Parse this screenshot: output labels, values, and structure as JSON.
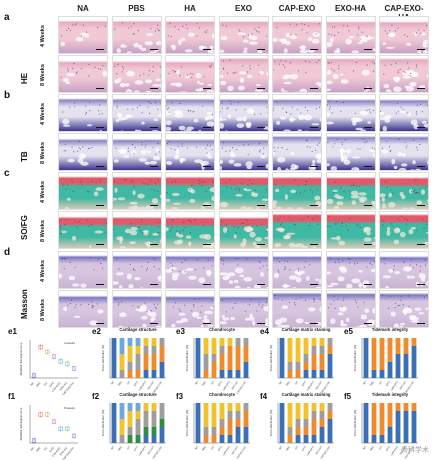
{
  "figure": {
    "columns": [
      "NA",
      "PBS",
      "HA",
      "EXO",
      "CAP-EXO",
      "EXO-HA",
      "CAP-EXO-HA"
    ],
    "panels": [
      {
        "letter": "a",
        "stain": "HE",
        "weeks": [
          "4 Weeks",
          "8 Weeks"
        ]
      },
      {
        "letter": "b",
        "stain": "TB",
        "weeks": [
          "4 Weeks",
          "8 Weeks"
        ]
      },
      {
        "letter": "c",
        "stain": "SO/FG",
        "weeks": [
          "4 Weeks",
          "8 Weeks"
        ]
      },
      {
        "letter": "d",
        "stain": "Masson",
        "weeks": [
          "4 Weeks",
          "8 Weeks"
        ]
      }
    ],
    "stain_colors": {
      "HE": [
        "#f1c9d6",
        "#e7a9c0",
        "#c9a1c4"
      ],
      "TB": [
        "#e4e2ef",
        "#8c86c6",
        "#3c358f"
      ],
      "SO/FG": [
        "#3fb8a4",
        "#e05a6a",
        "#d9c9b6"
      ],
      "Masson": [
        "#d7c5e0",
        "#7d79c3",
        "#c9b3d3"
      ]
    },
    "e_row_labels": [
      "e1",
      "e2",
      "e3",
      "e4",
      "e5"
    ],
    "f_row_labels": [
      "f1",
      "f2",
      "f3",
      "f4",
      "f5"
    ],
    "e1_legend": "4 weeks",
    "f1_legend": "8 weeks",
    "e1_ylabel": "Modified histological score",
    "f1_ylabel": "Modified histological score",
    "watermark": "骨科学术"
  },
  "chart_data": [
    {
      "type": "scatter",
      "id": "e1",
      "legend": "4 weeks",
      "ylabel": "Modified histological score",
      "categories": [
        "NA",
        "PBS",
        "HA",
        "EXO",
        "CAP-EXO",
        "EXO-HA",
        "CAP-EXO-HA"
      ],
      "values": [
        1,
        13,
        11,
        9,
        7,
        6,
        4
      ],
      "colors": [
        "#5b5bd6",
        "#e06060",
        "#e0a040",
        "#d070c0",
        "#60a0e0",
        "#60c080",
        "#8080e0"
      ]
    },
    {
      "type": "bar",
      "id": "e2",
      "title": "Cartilage structure",
      "ylabel": "Score distribution (%)",
      "categories": [
        "NA",
        "PBS",
        "HA",
        "EXO",
        "CAP-EXO",
        "EXO-HA",
        "CAP-EXO-HA"
      ],
      "series": [
        {
          "color": "#3b6fb6",
          "values": [
            100,
            0,
            0,
            0,
            20,
            20,
            40
          ]
        },
        {
          "color": "#f08a2c",
          "values": [
            0,
            0,
            20,
            20,
            40,
            40,
            40
          ]
        },
        {
          "color": "#9e9e9e",
          "values": [
            0,
            20,
            20,
            40,
            20,
            20,
            20
          ]
        },
        {
          "color": "#f2c12e",
          "values": [
            0,
            40,
            40,
            20,
            20,
            20,
            0
          ]
        },
        {
          "color": "#6fa8dc",
          "values": [
            0,
            40,
            20,
            20,
            0,
            0,
            0
          ]
        }
      ]
    },
    {
      "type": "bar",
      "id": "e3",
      "title": "Chondrocyte",
      "ylabel": "Score distribution (%)",
      "categories": [
        "NA",
        "PBS",
        "HA",
        "EXO",
        "CAP-EXO",
        "EXO-HA",
        "CAP-EXO-HA"
      ],
      "series": [
        {
          "color": "#3b6fb6",
          "values": [
            100,
            0,
            0,
            20,
            20,
            20,
            40
          ]
        },
        {
          "color": "#f08a2c",
          "values": [
            0,
            20,
            40,
            40,
            60,
            60,
            40
          ]
        },
        {
          "color": "#9e9e9e",
          "values": [
            0,
            40,
            20,
            20,
            0,
            20,
            20
          ]
        },
        {
          "color": "#f2c12e",
          "values": [
            0,
            40,
            40,
            20,
            20,
            0,
            0
          ]
        }
      ]
    },
    {
      "type": "bar",
      "id": "e4",
      "title": "Cartilage matrix staining",
      "ylabel": "Score distribution (%)",
      "categories": [
        "NA",
        "PBS",
        "HA",
        "EXO",
        "CAP-EXO",
        "EXO-HA",
        "CAP-EXO-HA"
      ],
      "series": [
        {
          "color": "#3b6fb6",
          "values": [
            100,
            0,
            0,
            20,
            20,
            20,
            60
          ]
        },
        {
          "color": "#f08a2c",
          "values": [
            0,
            20,
            20,
            20,
            40,
            40,
            20
          ]
        },
        {
          "color": "#9e9e9e",
          "values": [
            0,
            20,
            20,
            20,
            20,
            20,
            20
          ]
        },
        {
          "color": "#f2c12e",
          "values": [
            0,
            60,
            60,
            40,
            20,
            20,
            0
          ]
        }
      ]
    },
    {
      "type": "bar",
      "id": "e5",
      "title": "Tidemark integrity",
      "ylabel": "Score distribution (%)",
      "categories": [
        "NA",
        "PBS",
        "HA",
        "EXO",
        "CAP-EXO",
        "EXO-HA",
        "CAP-EXO-HA"
      ],
      "series": [
        {
          "color": "#3b6fb6",
          "values": [
            100,
            20,
            20,
            40,
            60,
            60,
            80
          ]
        },
        {
          "color": "#f08a2c",
          "values": [
            0,
            80,
            80,
            60,
            40,
            40,
            20
          ]
        }
      ]
    },
    {
      "type": "scatter",
      "id": "f1",
      "legend": "8 weeks",
      "ylabel": "Modified histological score",
      "categories": [
        "NA",
        "PBS",
        "HA",
        "EXO",
        "CAP-EXO",
        "EXO-HA",
        "CAP-EXO-HA"
      ],
      "values": [
        1,
        12,
        12,
        9,
        6,
        6,
        3
      ],
      "colors": [
        "#5b5bd6",
        "#e06060",
        "#e0a040",
        "#d070c0",
        "#60a0e0",
        "#60c080",
        "#8080e0"
      ]
    },
    {
      "type": "bar",
      "id": "f2",
      "title": "Cartilage structure",
      "ylabel": "Score distribution (%)",
      "categories": [
        "NA",
        "PBS",
        "HA",
        "EXO",
        "CAP-EXO",
        "EXO-HA",
        "CAP-EXO-HA"
      ],
      "series": [
        {
          "color": "#3b6fb6",
          "values": [
            100,
            0,
            0,
            0,
            20,
            20,
            40
          ]
        },
        {
          "color": "#2f8f3f",
          "values": [
            0,
            0,
            20,
            20,
            20,
            20,
            20
          ]
        },
        {
          "color": "#9e9e9e",
          "values": [
            0,
            20,
            20,
            40,
            40,
            40,
            40
          ]
        },
        {
          "color": "#f2c12e",
          "values": [
            0,
            40,
            40,
            20,
            20,
            20,
            0
          ]
        },
        {
          "color": "#6fa8dc",
          "values": [
            0,
            40,
            20,
            20,
            0,
            0,
            0
          ]
        }
      ]
    },
    {
      "type": "bar",
      "id": "f3",
      "title": "Chondrocyte",
      "ylabel": "Score distribution (%)",
      "categories": [
        "NA",
        "PBS",
        "HA",
        "EXO",
        "CAP-EXO",
        "EXO-HA",
        "CAP-EXO-HA"
      ],
      "series": [
        {
          "color": "#3b6fb6",
          "values": [
            100,
            0,
            0,
            20,
            20,
            40,
            40
          ]
        },
        {
          "color": "#f08a2c",
          "values": [
            0,
            20,
            20,
            20,
            40,
            20,
            40
          ]
        },
        {
          "color": "#9e9e9e",
          "values": [
            0,
            20,
            20,
            20,
            20,
            20,
            20
          ]
        },
        {
          "color": "#f2c12e",
          "values": [
            0,
            60,
            60,
            40,
            20,
            20,
            0
          ]
        }
      ]
    },
    {
      "type": "bar",
      "id": "f4",
      "title": "Cartilage matrix staining",
      "ylabel": "Score distribution (%)",
      "categories": [
        "NA",
        "PBS",
        "HA",
        "EXO",
        "CAP-EXO",
        "EXO-HA",
        "CAP-EXO-HA"
      ],
      "series": [
        {
          "color": "#3b6fb6",
          "values": [
            100,
            0,
            20,
            20,
            20,
            40,
            60
          ]
        },
        {
          "color": "#f08a2c",
          "values": [
            0,
            20,
            20,
            20,
            40,
            20,
            20
          ]
        },
        {
          "color": "#9e9e9e",
          "values": [
            0,
            20,
            20,
            20,
            20,
            20,
            20
          ]
        },
        {
          "color": "#f2c12e",
          "values": [
            0,
            60,
            40,
            40,
            20,
            20,
            0
          ]
        }
      ]
    },
    {
      "type": "bar",
      "id": "f5",
      "title": "Tidemark integrity",
      "ylabel": "Score distribution (%)",
      "categories": [
        "NA",
        "PBS",
        "HA",
        "EXO",
        "CAP-EXO",
        "EXO-HA",
        "CAP-EXO-HA"
      ],
      "series": [
        {
          "color": "#3b6fb6",
          "values": [
            100,
            20,
            20,
            40,
            80,
            80,
            80
          ]
        },
        {
          "color": "#f08a2c",
          "values": [
            0,
            80,
            80,
            60,
            20,
            20,
            20
          ]
        }
      ]
    }
  ]
}
